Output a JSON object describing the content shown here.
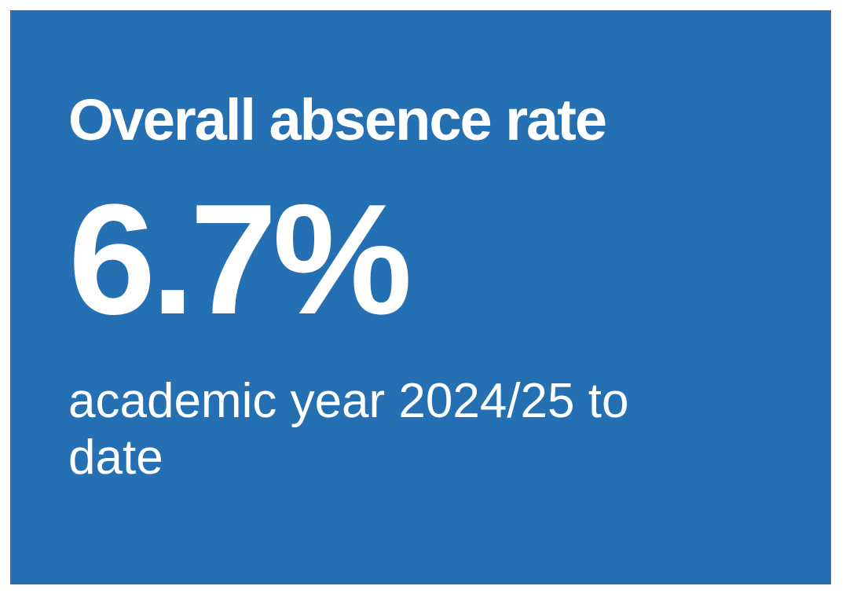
{
  "panel": {
    "title": "Overall absence rate",
    "value": "6.7%",
    "caption": "academic year 2024/25 to date"
  }
}
